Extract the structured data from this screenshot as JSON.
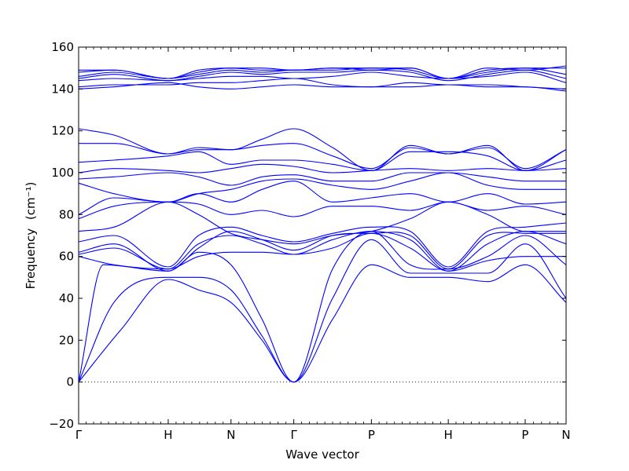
{
  "chart_data": {
    "type": "line",
    "xlabel": "Wave vector",
    "ylabel": "Frequency",
    "ylabel_unit": "(cm⁻¹)",
    "ylim": [
      -20,
      160
    ],
    "yticks": [
      -20,
      0,
      20,
      40,
      60,
      80,
      100,
      120,
      140,
      160
    ],
    "xlim": [
      0,
      6.91
    ],
    "xticks": [
      {
        "label": "Γ",
        "x": 0
      },
      {
        "label": "H",
        "x": 1.27
      },
      {
        "label": "N",
        "x": 2.16
      },
      {
        "label": "Γ",
        "x": 3.05
      },
      {
        "label": "P",
        "x": 4.15
      },
      {
        "label": "H",
        "x": 5.24
      },
      {
        "label": "P",
        "x": 6.33
      },
      {
        "label": "N",
        "x": 6.91
      }
    ],
    "zero_line": {
      "y": 0,
      "style": "dotted"
    },
    "series_color": "#0000ff",
    "series": [
      {
        "x": [
          0,
          0.6,
          1.27,
          1.7,
          2.16,
          2.6,
          3.05,
          3.6,
          4.15,
          4.7,
          5.24,
          5.8,
          6.33,
          6.91
        ],
        "y": [
          0,
          25,
          49,
          44,
          38,
          20,
          0,
          30,
          56,
          50,
          50,
          48,
          56,
          38
        ]
      },
      {
        "x": [
          0,
          0.5,
          1.27,
          1.7,
          2.16,
          2.6,
          3.05,
          3.6,
          4.15,
          4.7,
          5.24,
          5.8,
          6.33,
          6.91
        ],
        "y": [
          0,
          38,
          50,
          50,
          44,
          22,
          0,
          40,
          68,
          52,
          52,
          52,
          66,
          40
        ]
      },
      {
        "x": [
          0,
          0.35,
          1.27,
          1.7,
          2.16,
          2.6,
          3.05,
          3.6,
          4.15,
          4.7,
          5.24,
          5.8,
          6.33,
          6.91
        ],
        "y": [
          0,
          56,
          53,
          62,
          56,
          30,
          0,
          54,
          72,
          56,
          54,
          60,
          70,
          56
        ]
      },
      {
        "x": [
          0,
          0.5,
          1.27,
          1.7,
          2.16,
          2.6,
          3.05,
          3.6,
          4.15,
          4.7,
          5.24,
          5.8,
          6.33,
          6.91
        ],
        "y": [
          60,
          56,
          54,
          60,
          62,
          62,
          61,
          64,
          71,
          64,
          53,
          58,
          60,
          60
        ]
      },
      {
        "x": [
          0,
          0.5,
          1.27,
          1.7,
          2.16,
          2.6,
          3.05,
          3.6,
          4.15,
          4.7,
          5.24,
          5.8,
          6.33,
          6.91
        ],
        "y": [
          61,
          64,
          54,
          66,
          70,
          66,
          61,
          68,
          72,
          68,
          53,
          66,
          72,
          66
        ]
      },
      {
        "x": [
          0,
          0.5,
          1.27,
          1.7,
          2.16,
          2.6,
          3.05,
          3.6,
          4.15,
          4.7,
          5.24,
          5.8,
          6.33,
          6.91
        ],
        "y": [
          62,
          66,
          53,
          64,
          72,
          68,
          63,
          70,
          71,
          70,
          54,
          70,
          71,
          71
        ]
      },
      {
        "x": [
          0,
          0.5,
          1.27,
          1.7,
          2.16,
          2.6,
          3.05,
          3.6,
          4.15,
          4.7,
          5.24,
          5.8,
          6.33,
          6.91
        ],
        "y": [
          67,
          70,
          55,
          70,
          74,
          70,
          67,
          71,
          74,
          72,
          55,
          72,
          74,
          76
        ]
      },
      {
        "x": [
          0,
          0.5,
          1.27,
          1.7,
          2.16,
          2.6,
          3.05,
          3.6,
          4.15,
          4.7,
          5.24,
          5.8,
          6.33,
          6.91
        ],
        "y": [
          72,
          74,
          86,
          80,
          71,
          68,
          66,
          70,
          72,
          78,
          86,
          80,
          72,
          72
        ]
      },
      {
        "x": [
          0,
          0.5,
          1.27,
          1.7,
          2.16,
          2.6,
          3.05,
          3.6,
          4.15,
          4.7,
          5.24,
          5.8,
          6.33,
          6.91
        ],
        "y": [
          78,
          84,
          86,
          85,
          80,
          82,
          79,
          84,
          84,
          82,
          86,
          82,
          84,
          80
        ]
      },
      {
        "x": [
          0,
          0.5,
          1.27,
          1.7,
          2.16,
          2.6,
          3.05,
          3.6,
          4.15,
          4.7,
          5.24,
          5.8,
          6.33,
          6.91
        ],
        "y": [
          80,
          88,
          86,
          90,
          86,
          92,
          96,
          86,
          88,
          90,
          86,
          90,
          85,
          86
        ]
      },
      {
        "x": [
          0,
          0.5,
          1.27,
          1.7,
          2.16,
          2.6,
          3.05,
          3.6,
          4.15,
          4.7,
          5.24,
          5.8,
          6.33,
          6.91
        ],
        "y": [
          95,
          90,
          86,
          90,
          92,
          96,
          97,
          94,
          92,
          96,
          100,
          94,
          92,
          92
        ]
      },
      {
        "x": [
          0,
          0.5,
          1.27,
          1.7,
          2.16,
          2.6,
          3.05,
          3.6,
          4.15,
          4.7,
          5.24,
          5.8,
          6.33,
          6.91
        ],
        "y": [
          97,
          98,
          100,
          98,
          94,
          98,
          99,
          96,
          96,
          100,
          100,
          98,
          96,
          96
        ]
      },
      {
        "x": [
          0,
          0.5,
          1.27,
          1.7,
          2.16,
          2.6,
          3.05,
          3.6,
          4.15,
          4.7,
          5.24,
          5.8,
          6.33,
          6.91
        ],
        "y": [
          100,
          102,
          101,
          100,
          102,
          104,
          103,
          100,
          101,
          102,
          101,
          102,
          101,
          102
        ]
      },
      {
        "x": [
          0,
          0.5,
          1.27,
          1.7,
          2.16,
          2.6,
          3.05,
          3.6,
          4.15,
          4.7,
          5.24,
          5.8,
          6.33,
          6.91
        ],
        "y": [
          105,
          106,
          108,
          110,
          104,
          106,
          106,
          104,
          101,
          110,
          110,
          108,
          101,
          106
        ]
      },
      {
        "x": [
          0,
          0.5,
          1.27,
          1.7,
          2.16,
          2.6,
          3.05,
          3.6,
          4.15,
          4.7,
          5.24,
          5.8,
          6.33,
          6.91
        ],
        "y": [
          114,
          114,
          109,
          111,
          111,
          113,
          114,
          108,
          102,
          112,
          109,
          112,
          102,
          111
        ]
      },
      {
        "x": [
          0,
          0.5,
          1.27,
          1.7,
          2.16,
          2.6,
          3.05,
          3.6,
          4.15,
          4.7,
          5.24,
          5.8,
          6.33,
          6.91
        ],
        "y": [
          121,
          118,
          109,
          112,
          111,
          116,
          121,
          112,
          101,
          113,
          109,
          113,
          101,
          111
        ]
      },
      {
        "x": [
          0,
          0.5,
          1.27,
          1.7,
          2.16,
          2.6,
          3.05,
          3.6,
          4.15,
          4.7,
          5.24,
          5.8,
          6.33,
          6.91
        ],
        "y": [
          140,
          141,
          143,
          141,
          140,
          141,
          142,
          141,
          141,
          141,
          142,
          141,
          141,
          139
        ]
      },
      {
        "x": [
          0,
          0.5,
          1.27,
          1.7,
          2.16,
          2.6,
          3.05,
          3.6,
          4.15,
          4.7,
          5.24,
          5.8,
          6.33,
          6.91
        ],
        "y": [
          141,
          142,
          142,
          143,
          143,
          144,
          145,
          142,
          141,
          143,
          142,
          142,
          141,
          140
        ]
      },
      {
        "x": [
          0,
          0.5,
          1.27,
          1.7,
          2.16,
          2.6,
          3.05,
          3.6,
          4.15,
          4.7,
          5.24,
          5.8,
          6.33,
          6.91
        ],
        "y": [
          144,
          145,
          144,
          145,
          146,
          146,
          145,
          146,
          148,
          146,
          145,
          146,
          148,
          143
        ]
      },
      {
        "x": [
          0,
          0.5,
          1.27,
          1.7,
          2.16,
          2.6,
          3.05,
          3.6,
          4.15,
          4.7,
          5.24,
          5.8,
          6.33,
          6.91
        ],
        "y": [
          145,
          147,
          144,
          146,
          148,
          147,
          148,
          148,
          149,
          148,
          144,
          147,
          149,
          145
        ]
      },
      {
        "x": [
          0,
          0.5,
          1.27,
          1.7,
          2.16,
          2.6,
          3.05,
          3.6,
          4.15,
          4.7,
          5.24,
          5.8,
          6.33,
          6.91
        ],
        "y": [
          146,
          148,
          145,
          147,
          149,
          148,
          149,
          149,
          150,
          149,
          145,
          148,
          150,
          147
        ]
      },
      {
        "x": [
          0,
          0.5,
          1.27,
          1.7,
          2.16,
          2.6,
          3.05,
          3.6,
          4.15,
          4.7,
          5.24,
          5.8,
          6.33,
          6.91
        ],
        "y": [
          148,
          149,
          145,
          148,
          150,
          149,
          149,
          150,
          150,
          150,
          145,
          149,
          150,
          150
        ]
      },
      {
        "x": [
          0,
          0.5,
          1.27,
          1.7,
          2.16,
          2.6,
          3.05,
          3.6,
          4.15,
          4.7,
          5.24,
          5.8,
          6.33,
          6.91
        ],
        "y": [
          149,
          149,
          145,
          149,
          150,
          150,
          149,
          150,
          149,
          150,
          145,
          150,
          149,
          151
        ]
      }
    ]
  }
}
